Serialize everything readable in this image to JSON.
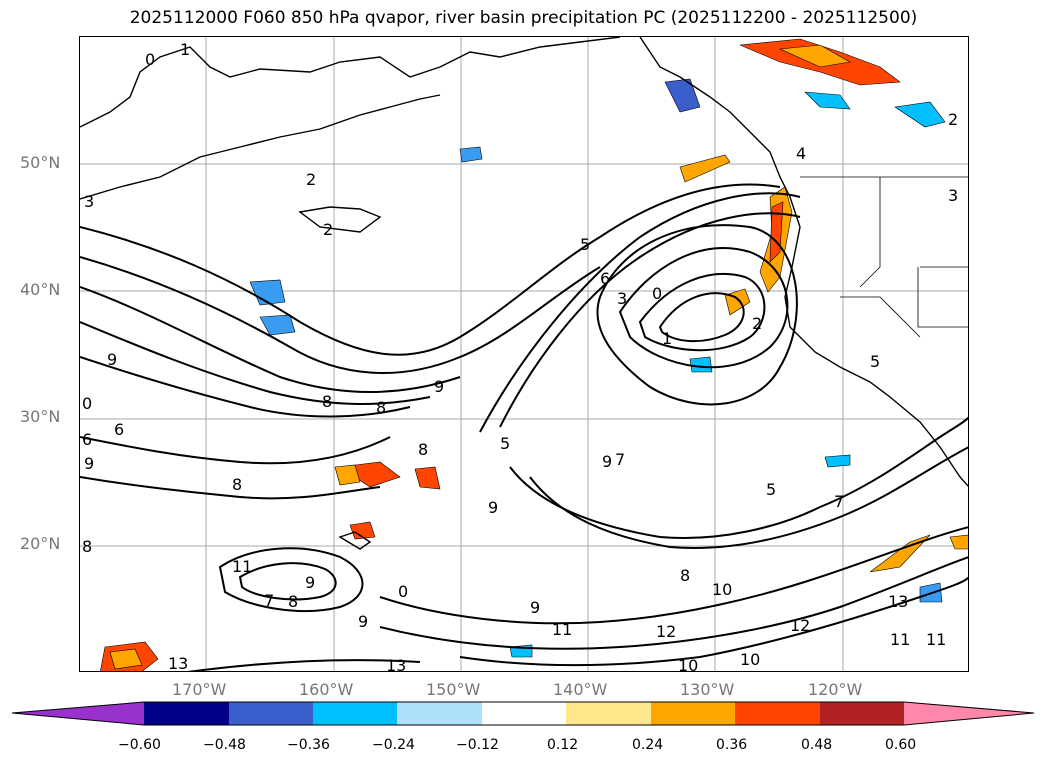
{
  "title": "2025112000 F060 850 hPa qvapor, river basin precipitation PC (2025112200 - 2025112500)",
  "map": {
    "lat_labels": [
      "50°N",
      "40°N",
      "30°N",
      "20°N"
    ],
    "lon_labels": [
      "170°W",
      "160°W",
      "150°W",
      "140°W",
      "130°W",
      "120°W"
    ],
    "contour_labels": [
      "0",
      "1",
      "2",
      "2",
      "2",
      "3",
      "5",
      "6",
      "3",
      "0",
      "1",
      "2",
      "4",
      "3",
      "5",
      "9",
      "8",
      "8",
      "6",
      "6",
      "9",
      "0",
      "9",
      "8",
      "8",
      "9",
      "5",
      "9",
      "7",
      "5",
      "7",
      "8",
      "11",
      "7",
      "8",
      "9",
      "9",
      "0",
      "10",
      "12",
      "12",
      "10",
      "13",
      "11",
      "13",
      "11",
      "10",
      "11",
      "8",
      "9",
      "13"
    ]
  },
  "colorbar": {
    "tick_labels": [
      "−0.60",
      "−0.48",
      "−0.36",
      "−0.24",
      "−0.12",
      "0.12",
      "0.24",
      "0.36",
      "0.48",
      "0.60"
    ],
    "colors": [
      "#9932CC",
      "#00008B",
      "#3A5FCD",
      "#00BFFF",
      "#ADE0FA",
      "#FFFFFF",
      "#FFE88C",
      "#FFA500",
      "#FF4500",
      "#B22222",
      "#FF88AA"
    ]
  }
}
